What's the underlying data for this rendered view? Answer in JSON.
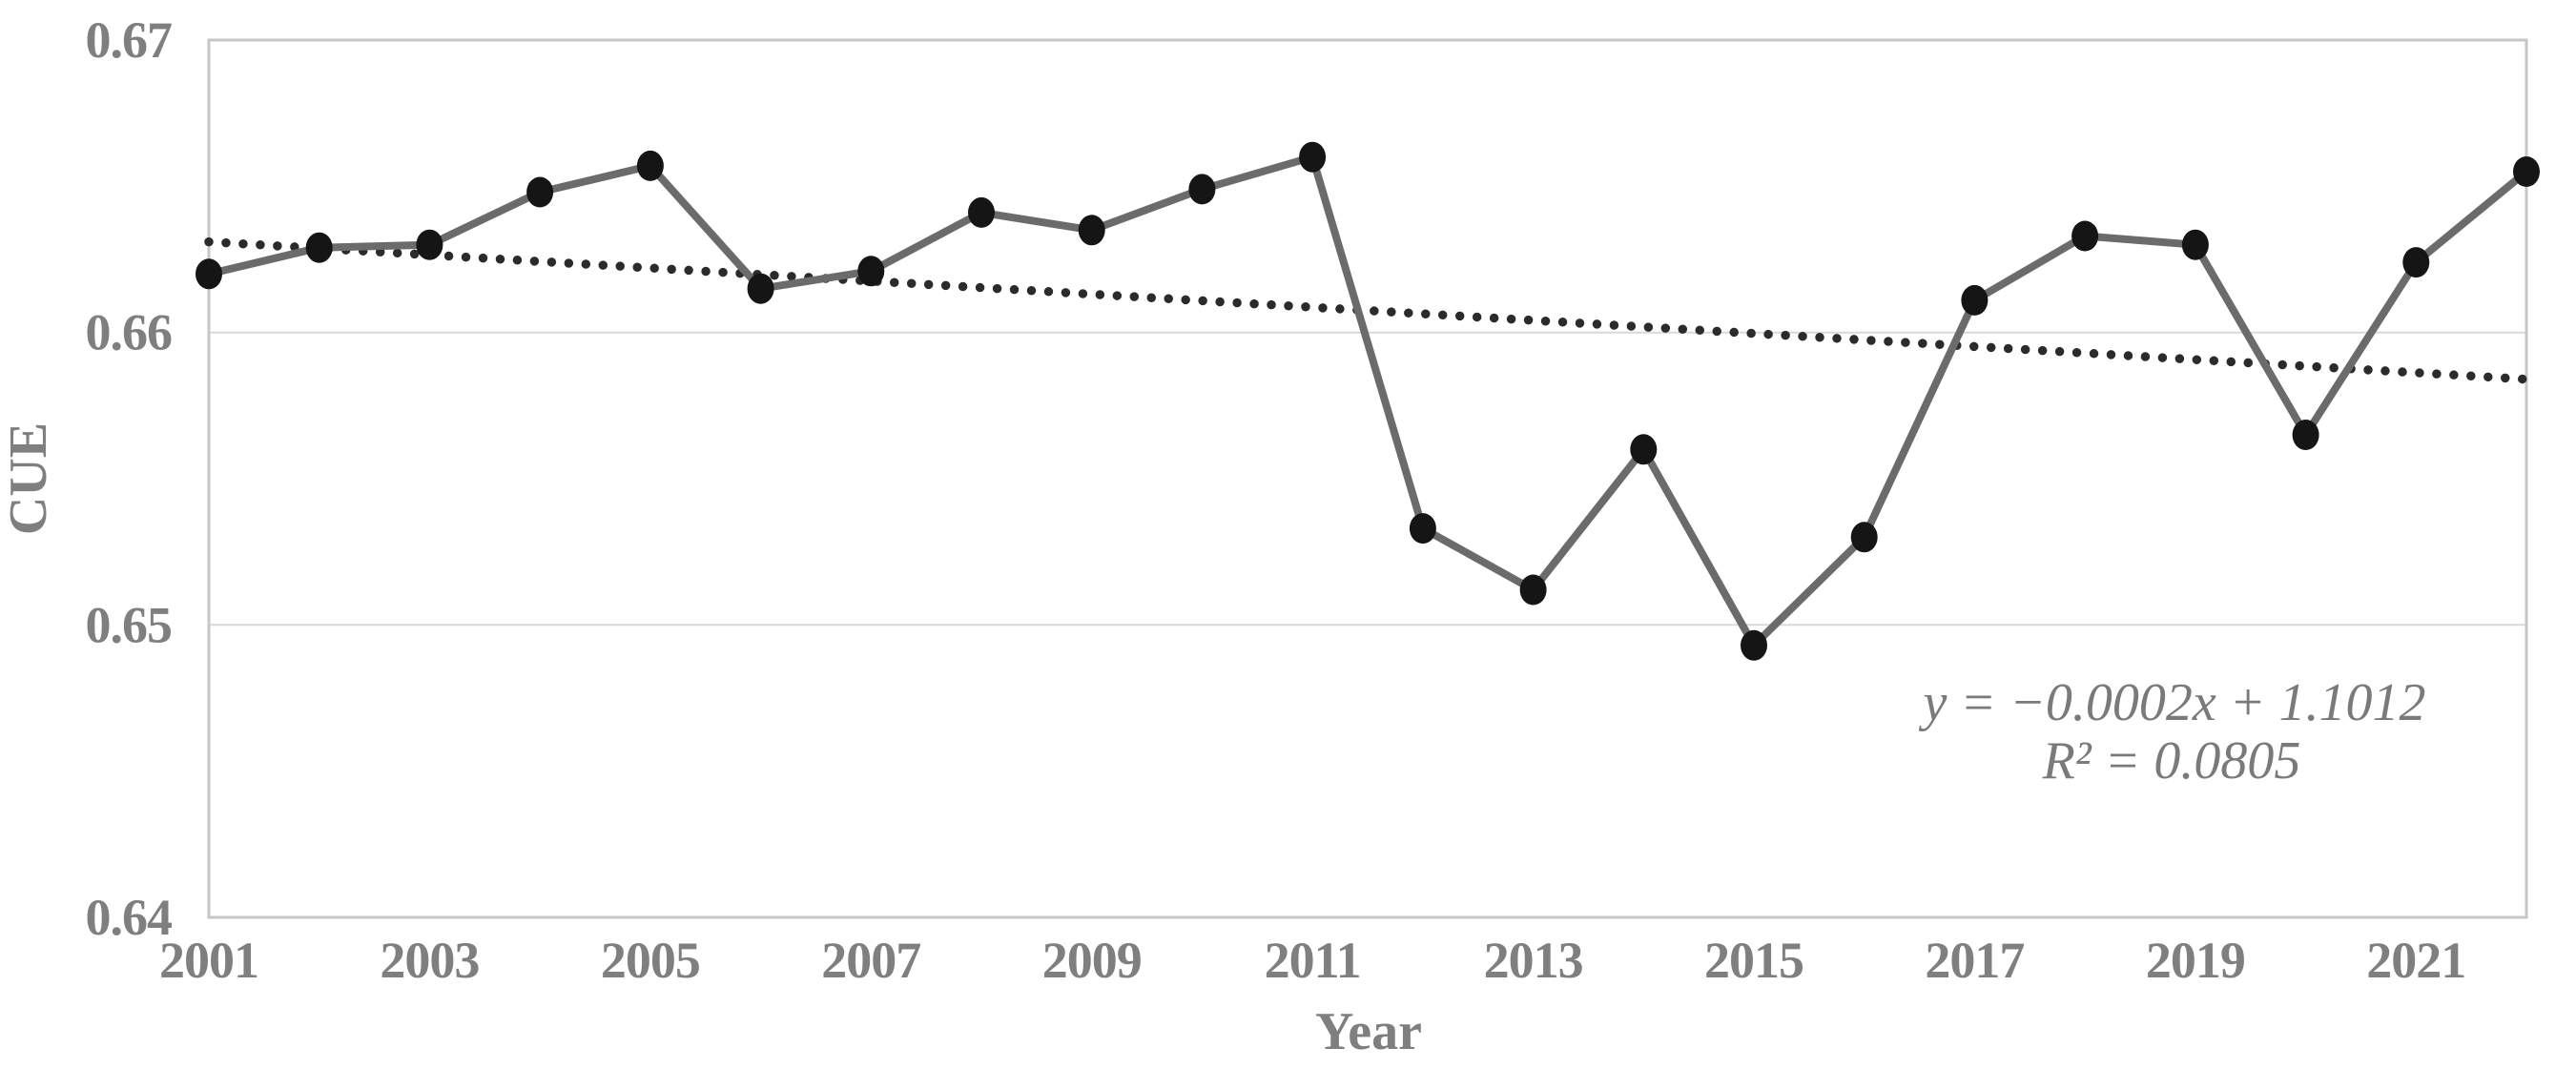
{
  "chart_data": {
    "type": "line",
    "title": "",
    "xlabel": "Year",
    "ylabel": "CUE",
    "x": [
      2001,
      2002,
      2003,
      2004,
      2005,
      2006,
      2007,
      2008,
      2009,
      2010,
      2011,
      2012,
      2013,
      2014,
      2015,
      2016,
      2017,
      2018,
      2019,
      2020,
      2021,
      2022
    ],
    "series": [
      {
        "name": "CUE",
        "values": [
          0.662,
          0.6629,
          0.663,
          0.6648,
          0.6657,
          0.6615,
          0.6621,
          0.6641,
          0.6635,
          0.6649,
          0.666,
          0.6533,
          0.6512,
          0.656,
          0.6493,
          0.653,
          0.6611,
          0.6633,
          0.663,
          0.6565,
          0.6624,
          0.6655
        ]
      }
    ],
    "trendline": {
      "style": "dotted",
      "start_value": 0.6631,
      "end_value": 0.6584,
      "equation": "y = −0.0002x + 1.1012",
      "r_squared": "R² = 0.0805"
    },
    "ylim": [
      0.64,
      0.67
    ],
    "yticks": [
      "0.67",
      "0.66",
      "0.65",
      "0.64"
    ],
    "ytick_values": [
      0.67,
      0.66,
      0.65,
      0.64
    ],
    "gridline_values": [
      0.66,
      0.65
    ],
    "xticks": [
      "2001",
      "2003",
      "2005",
      "2007",
      "2009",
      "2011",
      "2013",
      "2015",
      "2017",
      "2019",
      "2021"
    ],
    "xtick_values": [
      2001,
      2003,
      2005,
      2007,
      2009,
      2011,
      2013,
      2015,
      2017,
      2019,
      2021
    ],
    "grid": "horizontal",
    "legend": "none",
    "colors": {
      "background": "#ffffff",
      "plot_border": "#c6c6c6",
      "gridline": "#d9d9d9",
      "data_line": "#6b6b6b",
      "marker": "#151515",
      "trendline": "#2b2b2b",
      "labels": "#7f7f7f",
      "equation_text": "#7a7a7a"
    }
  }
}
